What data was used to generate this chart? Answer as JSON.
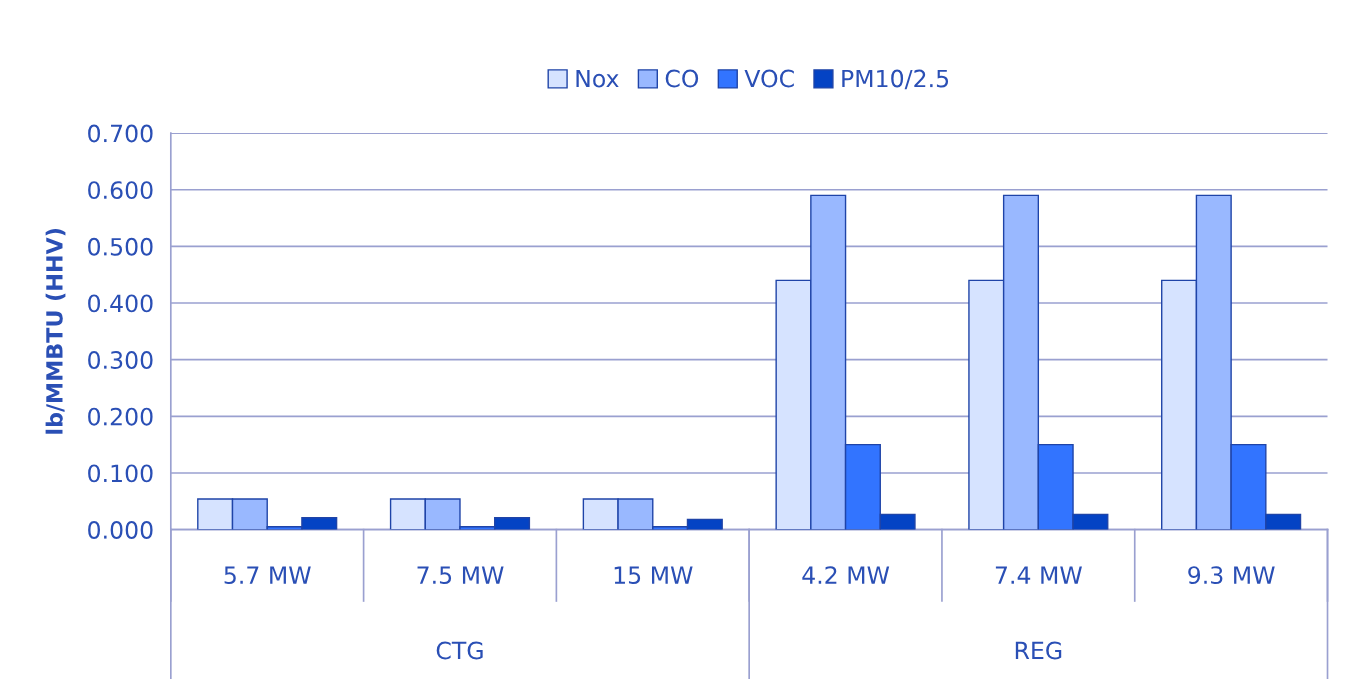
{
  "chart_data": {
    "type": "bar",
    "ylabel": "lb/MMBTU (HHV)",
    "categories": [
      "5.7 MW",
      "7.5 MW",
      "15 MW",
      "4.2 MW",
      "7.4 MW",
      "9.3 MW"
    ],
    "series": [
      {
        "name": "Nox",
        "color": "#d6e3ff",
        "values": [
          0.054,
          0.054,
          0.054,
          0.44,
          0.44,
          0.44
        ]
      },
      {
        "name": "CO",
        "color": "#99b8ff",
        "values": [
          0.054,
          0.054,
          0.054,
          0.59,
          0.59,
          0.59
        ]
      },
      {
        "name": "VOC",
        "color": "#3274ff",
        "values": [
          0.005,
          0.005,
          0.005,
          0.15,
          0.15,
          0.15
        ]
      },
      {
        "name": "PM10/2.5",
        "color": "#0443c4",
        "values": [
          0.021,
          0.021,
          0.018,
          0.027,
          0.027,
          0.027
        ]
      }
    ],
    "annotations": [
      "CTG",
      "REG"
    ],
    "ylim": [
      0,
      0.7
    ],
    "yticks": [
      {
        "value": 0,
        "label": "0.000"
      },
      {
        "value": 0.1,
        "label": "0.100"
      },
      {
        "value": 0.2,
        "label": "0.200"
      },
      {
        "value": 0.3,
        "label": "0.300"
      },
      {
        "value": 0.4,
        "label": "0.400"
      },
      {
        "value": 0.5,
        "label": "0.500"
      },
      {
        "value": 0.6,
        "label": "0.600"
      },
      {
        "value": 0.7,
        "label": "0.700"
      }
    ],
    "grid": "y",
    "legend": "top"
  }
}
